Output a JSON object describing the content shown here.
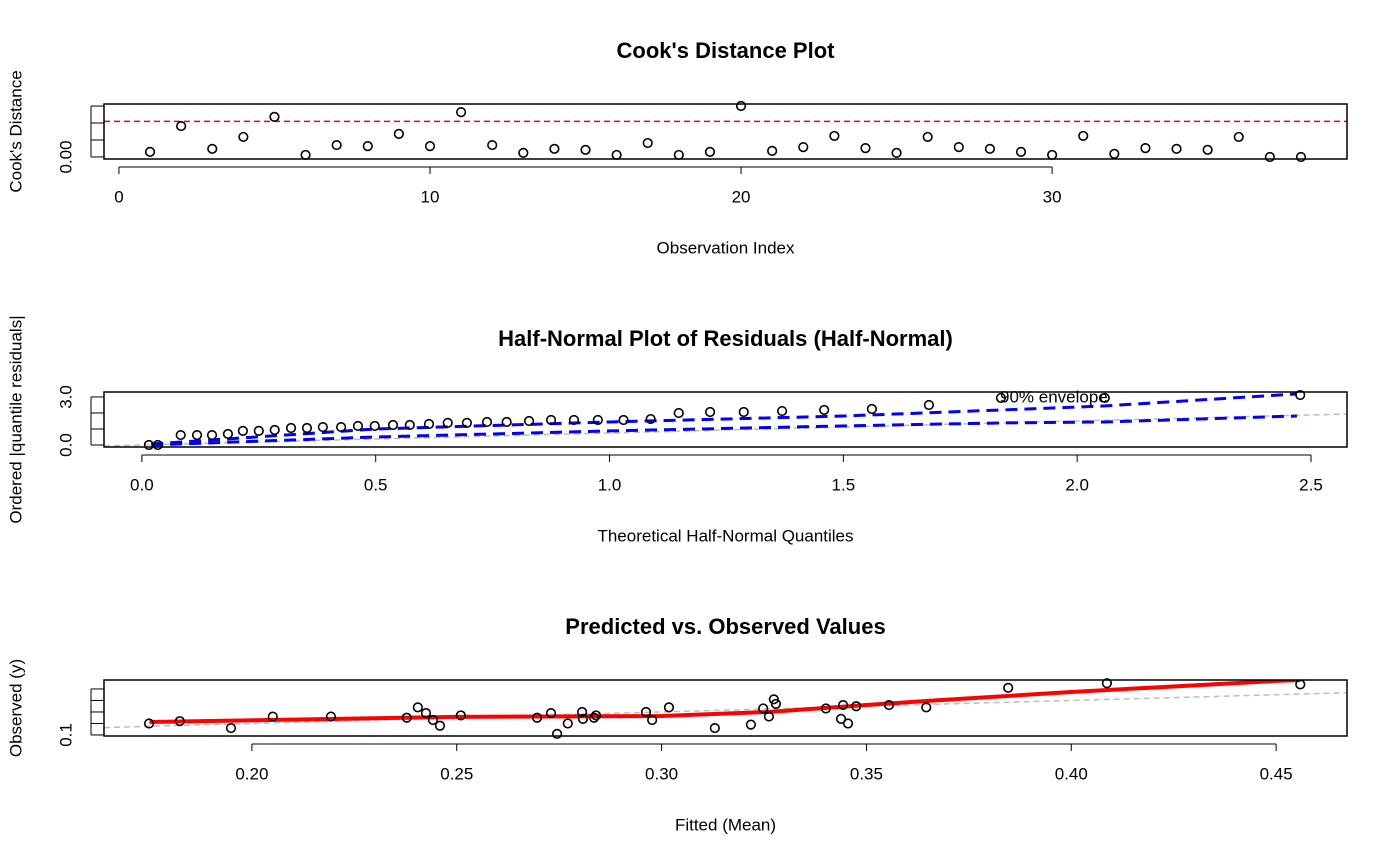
{
  "chart_data": [
    {
      "type": "scatter",
      "title": "Cook's Distance Plot",
      "xlabel": "Observation Index",
      "ylabel": "Cook's Distance",
      "x": [
        1,
        2,
        3,
        4,
        5,
        6,
        7,
        8,
        9,
        10,
        11,
        12,
        13,
        14,
        15,
        16,
        17,
        18,
        19,
        20,
        21,
        22,
        23,
        24,
        25,
        26,
        27,
        28,
        29,
        30,
        31,
        32,
        33,
        34,
        35,
        36,
        37,
        38
      ],
      "values": [
        0.015,
        0.091,
        0.024,
        0.059,
        0.118,
        0.006,
        0.035,
        0.032,
        0.068,
        0.032,
        0.132,
        0.035,
        0.012,
        0.024,
        0.021,
        0.006,
        0.041,
        0.006,
        0.015,
        0.15,
        0.018,
        0.029,
        0.062,
        0.026,
        0.012,
        0.059,
        0.029,
        0.024,
        0.015,
        0.006,
        0.062,
        0.009,
        0.026,
        0.024,
        0.021,
        0.059,
        0.0,
        0.0
      ],
      "point_color": "#000000",
      "xlim": [
        -0.48,
        39.48
      ],
      "ylim": [
        -0.006,
        0.156
      ],
      "xticks": [
        0,
        10,
        20,
        30
      ],
      "yticks": [
        {
          "value": 0,
          "label": "0.00"
        },
        {
          "value": 0.05,
          "label": null
        },
        {
          "value": 0.1,
          "label": null
        },
        {
          "value": 0.15,
          "label": null
        }
      ],
      "threshold": {
        "value": 0.105,
        "color": "#ff0000"
      }
    },
    {
      "type": "scatter",
      "title": "Half-Normal Plot of Residuals (Half-Normal)",
      "xlabel": "Theoretical Half-Normal Quantiles",
      "ylabel": "Ordered |quantile residuals|",
      "x": [
        0.015,
        0.034,
        0.083,
        0.118,
        0.15,
        0.184,
        0.216,
        0.25,
        0.284,
        0.319,
        0.353,
        0.387,
        0.426,
        0.462,
        0.498,
        0.537,
        0.573,
        0.614,
        0.654,
        0.695,
        0.738,
        0.78,
        0.828,
        0.875,
        0.924,
        0.975,
        1.03,
        1.088,
        1.148,
        1.215,
        1.287,
        1.369,
        1.459,
        1.561,
        1.683,
        1.837,
        2.059,
        2.477
      ],
      "values": [
        0.0,
        0.0,
        0.62,
        0.62,
        0.62,
        0.69,
        0.88,
        0.88,
        0.94,
        1.06,
        1.06,
        1.12,
        1.12,
        1.19,
        1.19,
        1.25,
        1.25,
        1.31,
        1.38,
        1.38,
        1.44,
        1.44,
        1.5,
        1.56,
        1.56,
        1.56,
        1.56,
        1.62,
        2.0,
        2.06,
        2.06,
        2.12,
        2.19,
        2.25,
        2.5,
        2.94,
        2.94,
        3.12
      ],
      "point_color": "#000000",
      "xlim": [
        -0.081,
        2.577
      ],
      "ylim": [
        -0.125,
        3.31
      ],
      "xticks": [
        {
          "value": 0,
          "label": "0.0"
        },
        0.5,
        {
          "value": 1,
          "label": "1.0"
        },
        1.5,
        {
          "value": 2,
          "label": "2.0"
        },
        2.5
      ],
      "yticks": [
        {
          "value": 0,
          "label": "0.0"
        },
        {
          "value": 1,
          "label": null
        },
        {
          "value": 2,
          "label": null
        },
        {
          "value": 3,
          "label": "3.0"
        }
      ],
      "envelope": {
        "label": "90% envelope",
        "color": "#0000ff",
        "x": [
          0.02,
          0.5,
          1.0,
          1.5,
          1.84,
          2.06,
          2.47
        ],
        "upper": [
          0.06,
          1.0,
          1.44,
          1.81,
          2.19,
          2.44,
          3.19
        ],
        "lower": [
          0.0,
          0.5,
          0.88,
          1.19,
          1.38,
          1.44,
          1.81
        ]
      },
      "reference_line": {
        "intercept": 0,
        "slope": 0.75,
        "color": "#bebebe"
      }
    },
    {
      "type": "scatter",
      "title": "Predicted vs. Observed Values",
      "xlabel": "Fitted (Mean)",
      "ylabel": "Observed (y)",
      "x": [
        0.1749,
        0.1824,
        0.1949,
        0.2051,
        0.2193,
        0.2378,
        0.2405,
        0.2425,
        0.2442,
        0.2459,
        0.251,
        0.2696,
        0.273,
        0.2745,
        0.2771,
        0.2806,
        0.2808,
        0.2835,
        0.284,
        0.2962,
        0.2977,
        0.3018,
        0.313,
        0.3218,
        0.3248,
        0.3262,
        0.3274,
        0.3279,
        0.3401,
        0.3438,
        0.3443,
        0.3455,
        0.3475,
        0.3555,
        0.3646,
        0.3846,
        0.4087,
        0.4559
      ],
      "values": [
        0.2,
        0.22,
        0.16,
        0.26,
        0.26,
        0.25,
        0.34,
        0.29,
        0.23,
        0.18,
        0.27,
        0.25,
        0.29,
        0.11,
        0.2,
        0.3,
        0.24,
        0.25,
        0.27,
        0.3,
        0.23,
        0.34,
        0.16,
        0.19,
        0.33,
        0.26,
        0.41,
        0.37,
        0.33,
        0.24,
        0.36,
        0.2,
        0.35,
        0.36,
        0.34,
        0.51,
        0.55,
        0.54
      ],
      "point_color": "#000000",
      "xlim": [
        0.1639,
        0.4673
      ],
      "ylim": [
        0.091,
        0.578
      ],
      "xticks": [
        {
          "value": 0.2,
          "label": "0.20"
        },
        0.25,
        {
          "value": 0.3,
          "label": "0.30"
        },
        0.35,
        {
          "value": 0.4,
          "label": "0.40"
        },
        0.45
      ],
      "yticks": [
        0.1,
        {
          "value": 0.2,
          "label": null
        },
        {
          "value": 0.3,
          "label": null
        },
        {
          "value": 0.4,
          "label": null
        },
        {
          "value": 0.5,
          "label": null
        }
      ],
      "smooth": {
        "color": "#ff0000",
        "x": [
          0.175,
          0.25,
          0.3,
          0.326,
          0.35,
          0.365,
          0.4,
          0.45,
          0.456
        ],
        "values": [
          0.213,
          0.257,
          0.265,
          0.3,
          0.361,
          0.396,
          0.474,
          0.57,
          0.578
        ]
      },
      "reference_line": {
        "intercept": 0,
        "slope": 1,
        "color": "#bebebe"
      }
    }
  ]
}
